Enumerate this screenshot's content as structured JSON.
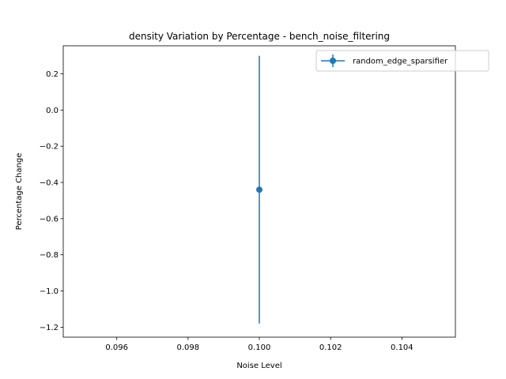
{
  "chart_data": {
    "type": "line",
    "title": "density Variation by Percentage - bench_noise_filtering",
    "xlabel": "Noise Level",
    "ylabel": "Percentage Change",
    "xlim": [
      0.0945,
      0.1055
    ],
    "ylim": [
      -1.255,
      0.355
    ],
    "xticks": [
      0.096,
      0.098,
      0.1,
      0.102,
      0.104
    ],
    "xtick_labels": [
      "0.096",
      "0.098",
      "0.100",
      "0.102",
      "0.104"
    ],
    "yticks": [
      0.2,
      0.0,
      -0.2,
      -0.4,
      -0.6,
      -0.8,
      -1.0,
      -1.2
    ],
    "ytick_labels": [
      "0.2",
      "0.0",
      "−0.2",
      "−0.4",
      "−0.6",
      "−0.8",
      "−1.0",
      "−1.2"
    ],
    "grid": false,
    "legend_position": "top-right",
    "series": [
      {
        "name": "random_edge_sparsifier",
        "color": "#1f77b4",
        "marker": "circle",
        "points": [
          {
            "x": 0.1,
            "y": -0.44,
            "yerr_low": -1.18,
            "yerr_high": 0.3
          }
        ]
      }
    ]
  }
}
